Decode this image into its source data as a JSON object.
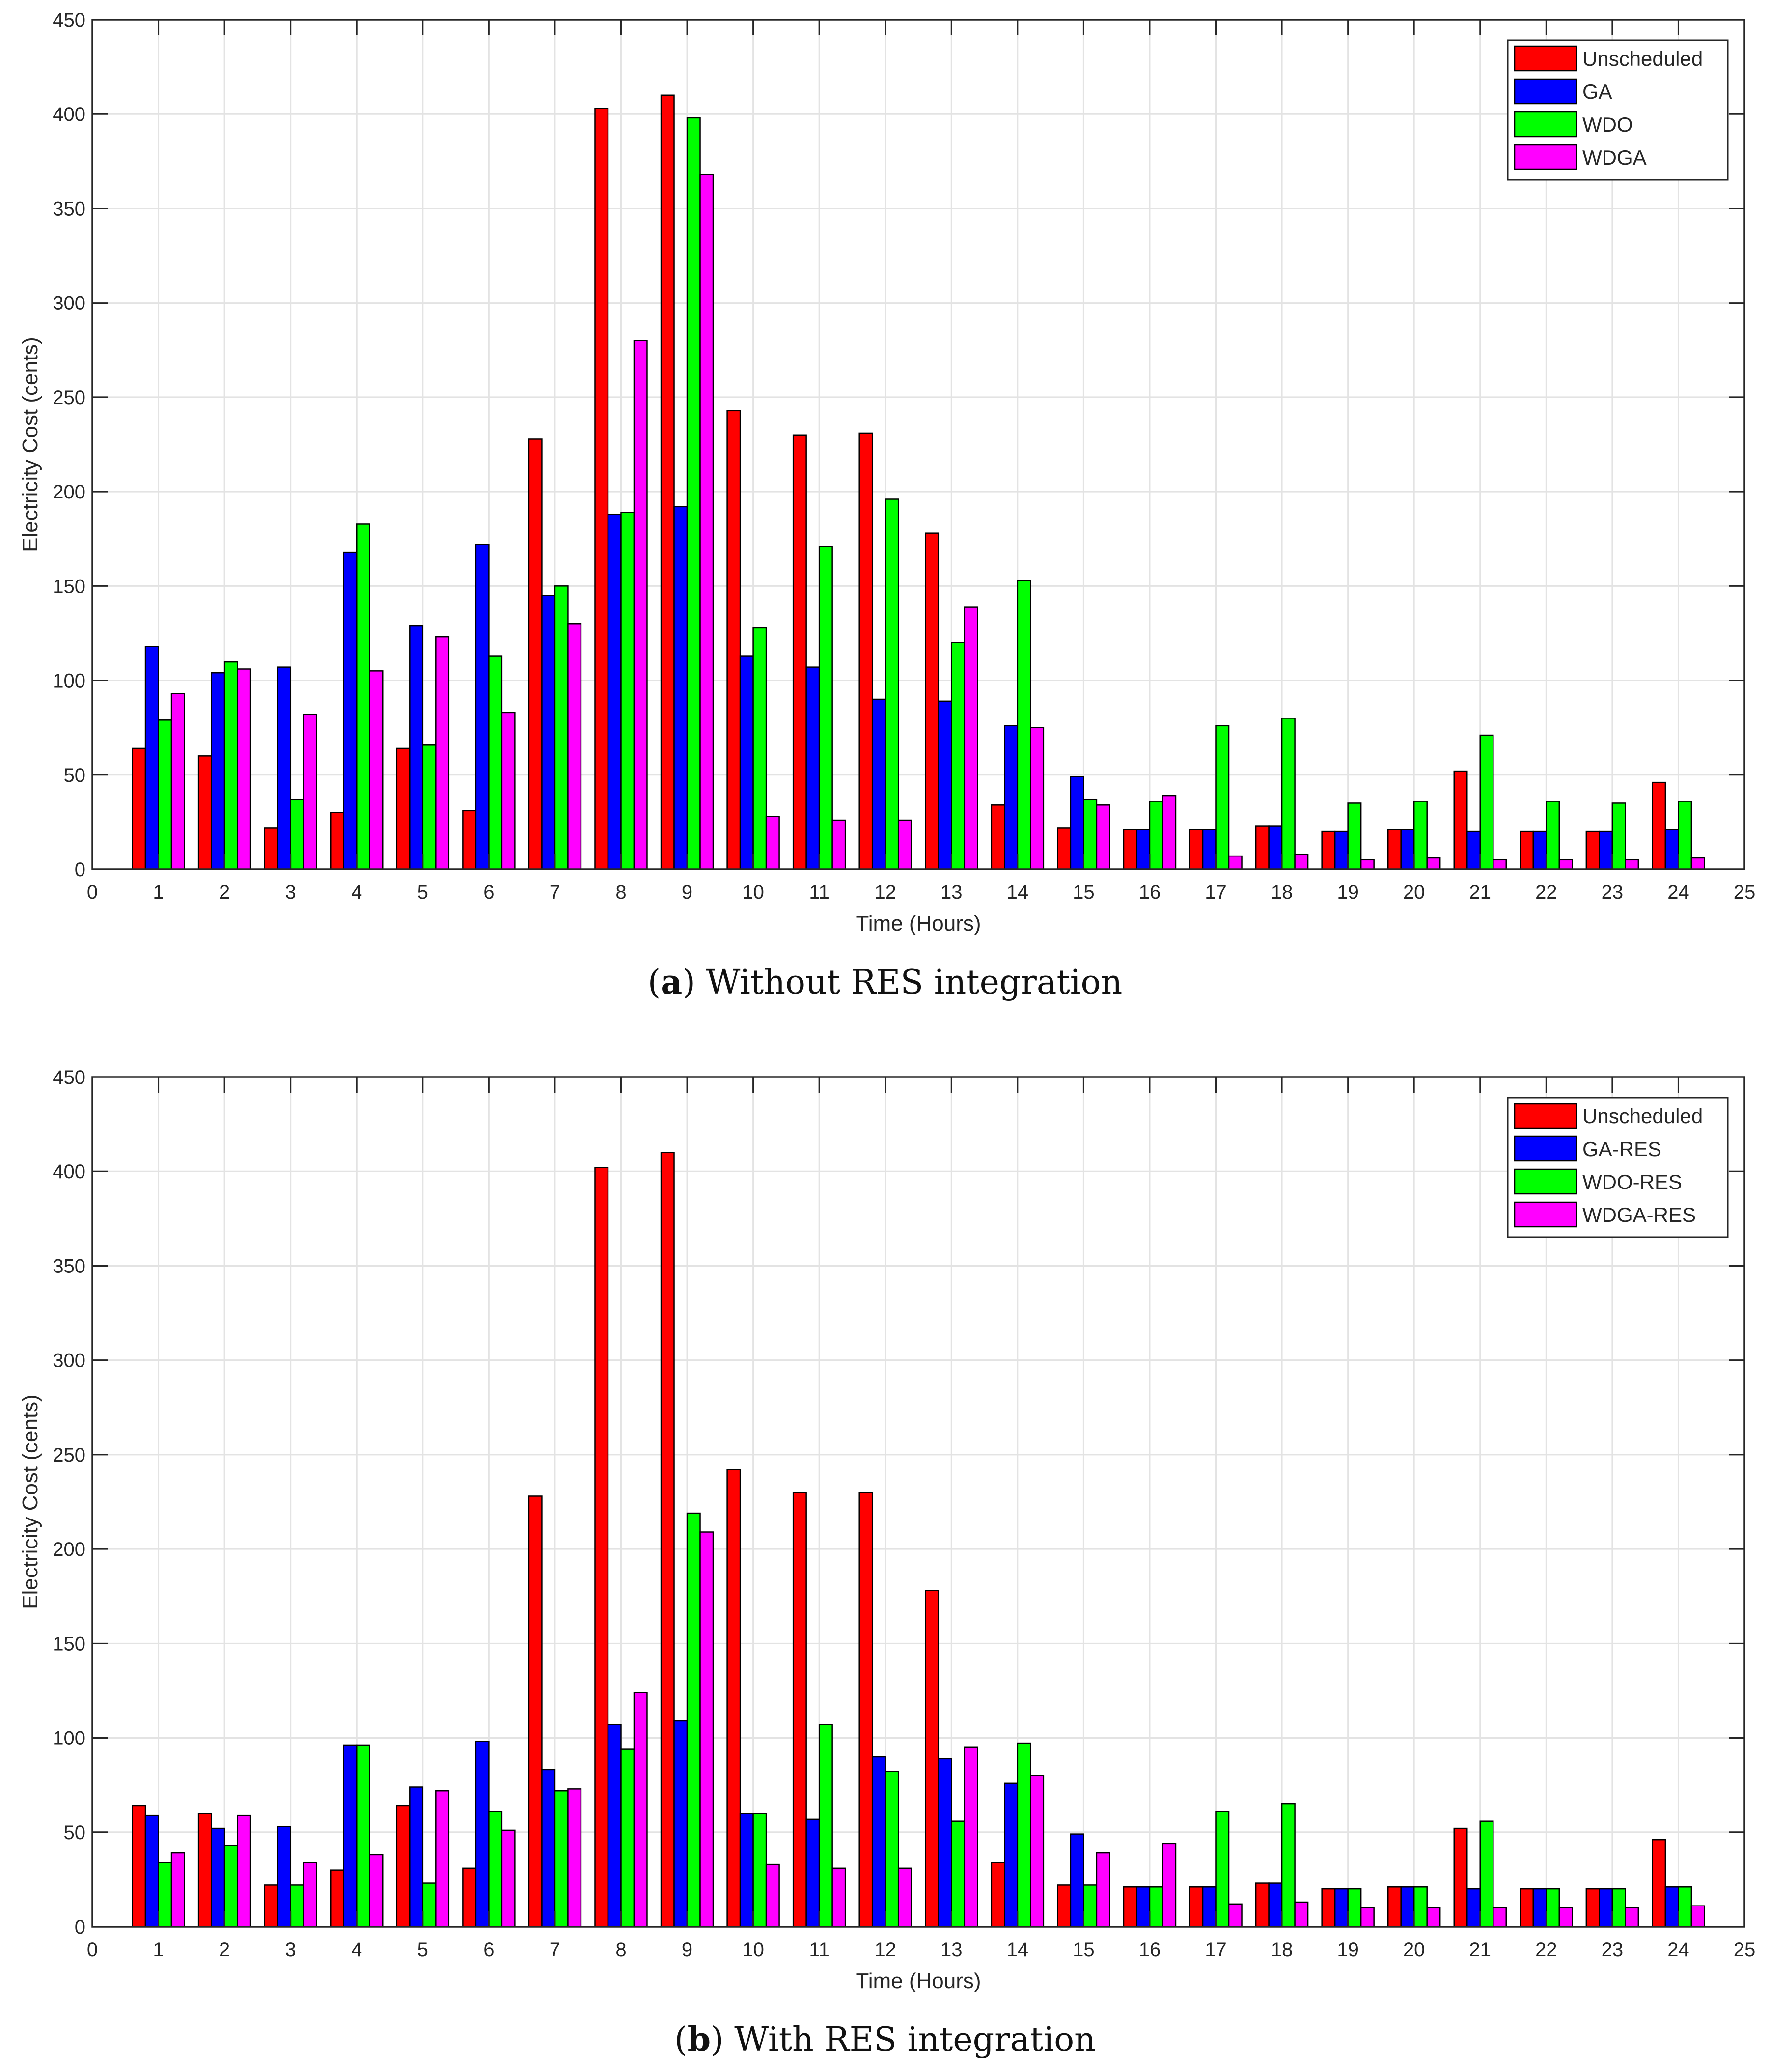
{
  "chart_data": [
    {
      "type": "bar",
      "id": "a",
      "xlabel": "Time (Hours)",
      "ylabel": "Electricity Cost (cents)",
      "xlim": [
        0,
        25
      ],
      "ylim": [
        0,
        450
      ],
      "xticks": [
        "0",
        "1",
        "2",
        "3",
        "4",
        "5",
        "6",
        "7",
        "8",
        "9",
        "10",
        "11",
        "12",
        "13",
        "14",
        "15",
        "16",
        "17",
        "18",
        "19",
        "20",
        "21",
        "22",
        "23",
        "24",
        "25"
      ],
      "yticks": [
        "0",
        "50",
        "100",
        "150",
        "200",
        "250",
        "300",
        "350",
        "400",
        "450"
      ],
      "grid": true,
      "legend_position": "top-right",
      "categories": [
        1,
        2,
        3,
        4,
        5,
        6,
        7,
        8,
        9,
        10,
        11,
        12,
        13,
        14,
        15,
        16,
        17,
        18,
        19,
        20,
        21,
        22,
        23,
        24
      ],
      "series": [
        {
          "name": "Unscheduled",
          "color": "#ff0000",
          "values": [
            64,
            60,
            22,
            30,
            64,
            31,
            228,
            403,
            410,
            243,
            230,
            231,
            178,
            34,
            22,
            21,
            21,
            23,
            20,
            21,
            52,
            20,
            20,
            46
          ]
        },
        {
          "name": "GA",
          "color": "#0000ff",
          "values": [
            118,
            104,
            107,
            168,
            129,
            172,
            145,
            188,
            192,
            113,
            107,
            90,
            89,
            76,
            49,
            21,
            21,
            23,
            20,
            21,
            20,
            20,
            20,
            21
          ]
        },
        {
          "name": "WDO",
          "color": "#00ff00",
          "values": [
            79,
            110,
            37,
            183,
            66,
            113,
            150,
            189,
            398,
            128,
            171,
            196,
            120,
            153,
            37,
            36,
            76,
            80,
            35,
            36,
            71,
            36,
            35,
            36
          ]
        },
        {
          "name": "WDGA",
          "color": "#ff00ff",
          "values": [
            93,
            106,
            82,
            105,
            123,
            83,
            130,
            280,
            368,
            28,
            26,
            26,
            139,
            75,
            34,
            39,
            7,
            8,
            5,
            6,
            5,
            5,
            5,
            6
          ]
        }
      ],
      "caption_label": "a",
      "caption_text": ") Without RES integration"
    },
    {
      "type": "bar",
      "id": "b",
      "xlabel": "Time (Hours)",
      "ylabel": "Electricity Cost (cents)",
      "xlim": [
        0,
        25
      ],
      "ylim": [
        0,
        450
      ],
      "xticks": [
        "0",
        "1",
        "2",
        "3",
        "4",
        "5",
        "6",
        "7",
        "8",
        "9",
        "10",
        "11",
        "12",
        "13",
        "14",
        "15",
        "16",
        "17",
        "18",
        "19",
        "20",
        "21",
        "22",
        "23",
        "24",
        "25"
      ],
      "yticks": [
        "0",
        "50",
        "100",
        "150",
        "200",
        "250",
        "300",
        "350",
        "400",
        "450"
      ],
      "grid": true,
      "legend_position": "top-right",
      "categories": [
        1,
        2,
        3,
        4,
        5,
        6,
        7,
        8,
        9,
        10,
        11,
        12,
        13,
        14,
        15,
        16,
        17,
        18,
        19,
        20,
        21,
        22,
        23,
        24
      ],
      "series": [
        {
          "name": "Unscheduled",
          "color": "#ff0000",
          "values": [
            64,
            60,
            22,
            30,
            64,
            31,
            228,
            402,
            410,
            242,
            230,
            230,
            178,
            34,
            22,
            21,
            21,
            23,
            20,
            21,
            52,
            20,
            20,
            46
          ]
        },
        {
          "name": "GA-RES",
          "color": "#0000ff",
          "values": [
            59,
            52,
            53,
            96,
            74,
            98,
            83,
            107,
            109,
            60,
            57,
            90,
            89,
            76,
            49,
            21,
            21,
            23,
            20,
            21,
            20,
            20,
            20,
            21
          ]
        },
        {
          "name": "WDO-RES",
          "color": "#00ff00",
          "values": [
            34,
            43,
            22,
            96,
            23,
            61,
            72,
            94,
            219,
            60,
            107,
            82,
            56,
            97,
            22,
            21,
            61,
            65,
            20,
            21,
            56,
            20,
            20,
            21
          ]
        },
        {
          "name": "WDGA-RES",
          "color": "#ff00ff",
          "values": [
            39,
            59,
            34,
            38,
            72,
            51,
            73,
            124,
            209,
            33,
            31,
            31,
            95,
            80,
            39,
            44,
            12,
            13,
            10,
            10,
            10,
            10,
            10,
            11
          ]
        }
      ],
      "caption_label": "b",
      "caption_text": ") With RES integration"
    }
  ]
}
